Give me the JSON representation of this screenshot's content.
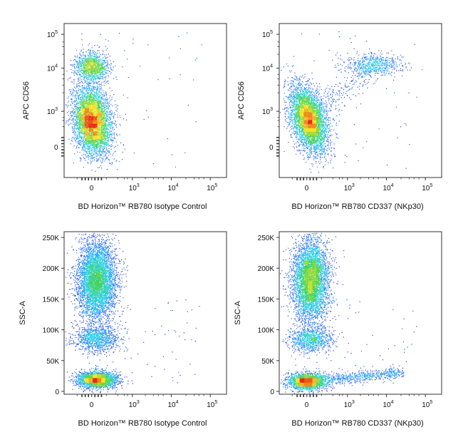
{
  "chart_data": [
    {
      "type": "scatter",
      "title": "",
      "xlabel": "BD Horizon™ RB780 Isotype Control",
      "ylabel": "APC CD56",
      "x_scale": "biexponential",
      "y_scale": "biexponential",
      "x_ticks": [
        {
          "base": "0",
          "exp": ""
        },
        {
          "base": "10",
          "exp": "3"
        },
        {
          "base": "10",
          "exp": "4"
        },
        {
          "base": "10",
          "exp": "5"
        }
      ],
      "y_ticks": [
        {
          "base": "0",
          "exp": ""
        },
        {
          "base": "10",
          "exp": "3"
        },
        {
          "base": "10",
          "exp": "4"
        },
        {
          "base": "10",
          "exp": "5"
        }
      ],
      "populations": [
        {
          "x_center": 0,
          "y_center": 800,
          "n": 5200
        },
        {
          "x_center": 0,
          "y_center": 14000,
          "n": 1300
        }
      ]
    },
    {
      "type": "scatter",
      "title": "",
      "xlabel": "BD Horizon™ RB780 CD337 (NKp30)",
      "ylabel": "APC CD56",
      "x_scale": "biexponential",
      "y_scale": "biexponential",
      "x_ticks": [
        {
          "base": "0",
          "exp": ""
        },
        {
          "base": "10",
          "exp": "3"
        },
        {
          "base": "10",
          "exp": "4"
        },
        {
          "base": "10",
          "exp": "5"
        }
      ],
      "y_ticks": [
        {
          "base": "0",
          "exp": ""
        },
        {
          "base": "10",
          "exp": "3"
        },
        {
          "base": "10",
          "exp": "4"
        },
        {
          "base": "10",
          "exp": "5"
        }
      ],
      "populations": [
        {
          "x_center": 0,
          "y_center": 800,
          "n": 4800
        },
        {
          "x_center": 3000,
          "y_center": 16000,
          "n": 900
        }
      ]
    },
    {
      "type": "scatter",
      "title": "",
      "xlabel": "BD Horizon™ RB780 Isotype Control",
      "ylabel": "SSC-A",
      "x_scale": "biexponential",
      "y_scale": "linear",
      "x_ticks": [
        {
          "base": "0",
          "exp": ""
        },
        {
          "base": "10",
          "exp": "3"
        },
        {
          "base": "10",
          "exp": "4"
        },
        {
          "base": "10",
          "exp": "5"
        }
      ],
      "y_ticks": [
        "0",
        "50K",
        "100K",
        "150K",
        "200K",
        "250K"
      ],
      "ylim": [
        0,
        260000
      ],
      "populations": [
        {
          "x_center": 0,
          "y_center": 190000,
          "n": 5500
        },
        {
          "x_center": 0,
          "y_center": 88000,
          "n": 1100
        },
        {
          "x_center": 0,
          "y_center": 20000,
          "n": 2600
        }
      ]
    },
    {
      "type": "scatter",
      "title": "",
      "xlabel": "BD Horizon™ RB780 CD337 (NKp30)",
      "ylabel": "SSC-A",
      "x_scale": "biexponential",
      "y_scale": "linear",
      "x_ticks": [
        {
          "base": "0",
          "exp": ""
        },
        {
          "base": "10",
          "exp": "3"
        },
        {
          "base": "10",
          "exp": "4"
        },
        {
          "base": "10",
          "exp": "5"
        }
      ],
      "y_ticks": [
        "0",
        "50K",
        "100K",
        "150K",
        "200K",
        "250K"
      ],
      "ylim": [
        0,
        260000
      ],
      "populations": [
        {
          "x_center": 0,
          "y_center": 190000,
          "n": 5200
        },
        {
          "x_center": 0,
          "y_center": 88000,
          "n": 1000
        },
        {
          "x_center": 0,
          "y_center": 20000,
          "n": 2200
        },
        {
          "x_center": 3000,
          "y_center": 28000,
          "n": 700
        }
      ]
    }
  ]
}
